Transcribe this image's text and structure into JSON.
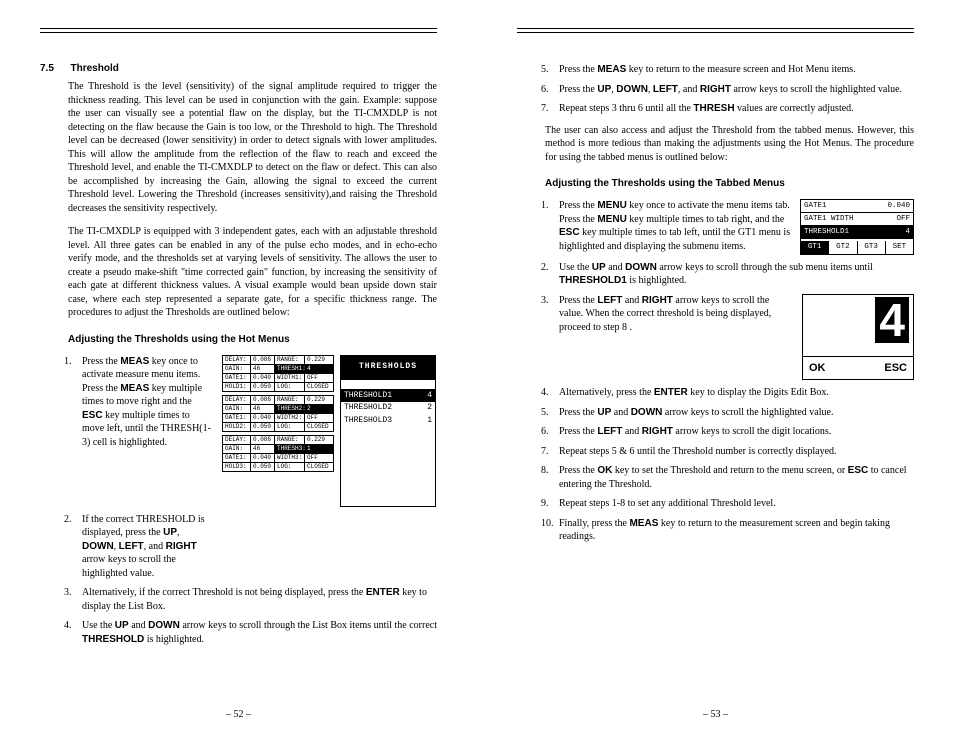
{
  "left": {
    "section_num": "7.5",
    "section_title": "Threshold",
    "para1": "The Threshold is the level (sensitivity) of the signal amplitude required to trigger the thickness reading. This level can be used in conjunction with the gain. Example: suppose the user can visually see a potential flaw on the display, but the TI-CMXDLP is not detecting on the flaw because the Gain is too low, or the Threshold to high. The Threshold level can be decreased (lower sensitivity) in order to detect signals with lower amplitudes. This will allow the amplitude from the reflection of the flaw to  reach and exceed the Threshold level, and enable the TI-CMXDLP to detect on the flaw or defect. This can also be accomplished by increasing the Gain, allowing the signal to exceed the current Threshold level. Lowering the Threshold (increases sensitivity),and raising the Threshold decreases the sensitivity respectively.",
    "para2": "The TI-CMXDLP is equipped with 3 independent gates, each with an adjustable threshold level. All three gates can be enabled in any of the pulse echo modes, and in echo-echo verify mode, and the thresholds set at varying levels of sensitivity. The allows the user to create a pseudo make-shift \"time corrected gain\" function, by increasing the sensitivity of each gate at different thickness values. A visual example would bean upside down stair case, where each step represented a separate gate, for a specific thickness range. The procedures to adjust the Thresholds are outlined below:",
    "sub_heading": "Adjusting the Thresholds using the Hot Menus",
    "step1": "Press the <strong>MEAS</strong> key once to activate measure menu items. Press the <strong>MEAS</strong> key multiple times to move right and the <strong>ESC</strong> key multiple times to move left, until the THRESH(1-3) cell is highlighted.",
    "step2": "If the correct THRESHOLD is displayed, press the <strong>UP</strong>, <strong>DOWN</strong>, <strong>LEFT</strong>, and <strong>RIGHT</strong> arrow keys to scroll the highlighted value.",
    "step3": "Alternatively, if the correct Threshold is not being displayed, press the <strong>ENTER</strong> key to display the List Box.",
    "step4": "Use the <strong>UP</strong> and <strong>DOWN</strong> arrow keys to scroll through the List Box items until the correct <strong>THRESHOLD</strong> is highlighted.",
    "page_num": "– 52 –",
    "lcd_blocks": [
      [
        [
          "DELAY:",
          "0.086",
          "RANGE:",
          "0.229"
        ],
        [
          "GAIN:",
          "46",
          "THRESH1:",
          "4"
        ],
        [
          "GATE1:",
          "0.040",
          "WIDTH1:",
          "OFF"
        ],
        [
          "HOLD1:",
          "0.050",
          "LOG:",
          "CLOSED"
        ]
      ],
      [
        [
          "DELAY:",
          "0.086",
          "RANGE:",
          "0.229"
        ],
        [
          "GAIN:",
          "46",
          "THRESH2:",
          "2"
        ],
        [
          "GATE1:",
          "0.040",
          "WIDTH2:",
          "OFF"
        ],
        [
          "HOLD2:",
          "0.050",
          "LOG:",
          "CLOSED"
        ]
      ],
      [
        [
          "DELAY:",
          "0.086",
          "RANGE:",
          "0.229"
        ],
        [
          "GAIN:",
          "46",
          "THRESH3:",
          "1"
        ],
        [
          "GATE1:",
          "0.040",
          "WIDTH3:",
          "OFF"
        ],
        [
          "HOLD3:",
          "0.050",
          "LOG:",
          "CLOSED"
        ]
      ]
    ],
    "thr_panel": {
      "title": "THRESHOLDS",
      "rows": [
        [
          "THRESHOLD1",
          "4"
        ],
        [
          "THRESHOLD2",
          "2"
        ],
        [
          "THRESHOLD3",
          "1"
        ]
      ]
    }
  },
  "right": {
    "step5": "Press the <strong>MEAS</strong> key to return to the measure screen and Hot Menu items.",
    "step6": "Press the <strong>UP</strong>, <strong>DOWN</strong>, <strong>LEFT</strong>, and <strong>RIGHT</strong> arrow keys to scroll the highlighted value.",
    "step7": "Repeat steps 3 thru 6 until all the <strong>THRESH</strong> values are correctly adjusted.",
    "para": "The user can also access and adjust the Threshold from the tabbed menus. However, this method is more tedious than making the adjustments using the Hot Menus. The procedure for using the tabbed menus is outlined below:",
    "sub_heading": "Adjusting the Thresholds using the Tabbed Menus",
    "t1": "Press the <strong>MENU</strong> key once to activate the menu items tab. Press the <strong>MENU</strong> key multiple times to tab right, and the <strong>ESC</strong> key multiple times to tab left, until the GT1 menu is highlighted and displaying the submenu items.",
    "t2": "Use the <strong>UP</strong> and <strong>DOWN</strong> arrow keys to scroll through the sub menu items until <strong>THRESHOLD1</strong> is highlighted.",
    "t3": "Press the <strong>LEFT</strong> and <strong>RIGHT</strong> arrow keys to scroll the value. When the correct threshold is being displayed, proceed to step 8 .",
    "t4": "Alternatively, press the <strong>ENTER</strong> key to display the Digits Edit Box.",
    "t5": "Press the <strong>UP</strong> and <strong>DOWN</strong> arrow keys to scroll the highlighted value.",
    "t6": "Press the <strong>LEFT</strong> and <strong>RIGHT</strong> arrow keys to scroll the digit locations.",
    "t7": "Repeat steps 5 & 6 until the Threshold number is correctly displayed.",
    "t8": "Press the <strong>OK</strong> key to set the Threshold and return to the menu screen, or <strong>ESC</strong> to cancel entering the Threshold.",
    "t9": "Repeat steps 1-8 to set any additional Threshold level.",
    "t10": "Finally, press the <strong>MEAS</strong> key to return to the measurement screen and begin taking readings.",
    "page_num": "– 53 –",
    "gate_panel": {
      "r1": [
        "GATE1",
        "0.040"
      ],
      "r2": [
        "GATE1 WIDTH",
        "OFF"
      ],
      "r3": [
        "THRESHOLD1",
        "4"
      ],
      "tabs": [
        "GT1",
        "GT2",
        "GT3",
        "SET"
      ]
    },
    "digit_panel": {
      "big": "4",
      "ok": "OK",
      "esc": "ESC"
    }
  }
}
